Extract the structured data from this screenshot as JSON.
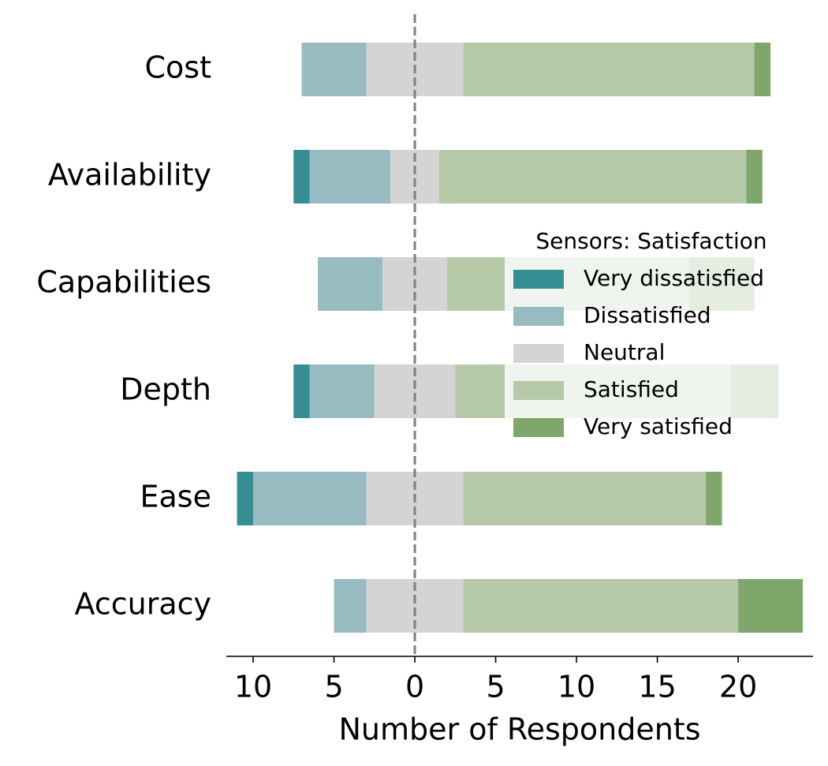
{
  "chart_data": {
    "type": "diverging_bar",
    "categories": [
      "Cost",
      "Availability",
      "Capabilities",
      "Depth",
      "Ease",
      "Accuracy"
    ],
    "series": [
      {
        "name": "Very dissatisfied",
        "color": "#378d94",
        "values": [
          0,
          1,
          0,
          1,
          1,
          0
        ]
      },
      {
        "name": "Dissatisfied",
        "color": "#98bbc1",
        "values": [
          4,
          5,
          4,
          4,
          7,
          2
        ]
      },
      {
        "name": "Neutral",
        "color": "#d4d4d4",
        "values": [
          6,
          3,
          4,
          5,
          6,
          6
        ]
      },
      {
        "name": "Satisfied",
        "color": "#b5c9a9",
        "values": [
          18,
          19,
          15,
          17,
          15,
          17
        ]
      },
      {
        "name": "Very satisfied",
        "color": "#7fa76c",
        "values": [
          1,
          1,
          4,
          3,
          1,
          4
        ]
      }
    ],
    "xlabel": "Number of Respondents",
    "xlim": [
      -11.66,
      24.63
    ],
    "xticks": [
      {
        "value": -10,
        "label": "10"
      },
      {
        "value": -5,
        "label": "5"
      },
      0,
      5,
      10,
      15,
      20
    ],
    "legend_title": "Sensors: Satisfaction",
    "legend": "center right"
  }
}
